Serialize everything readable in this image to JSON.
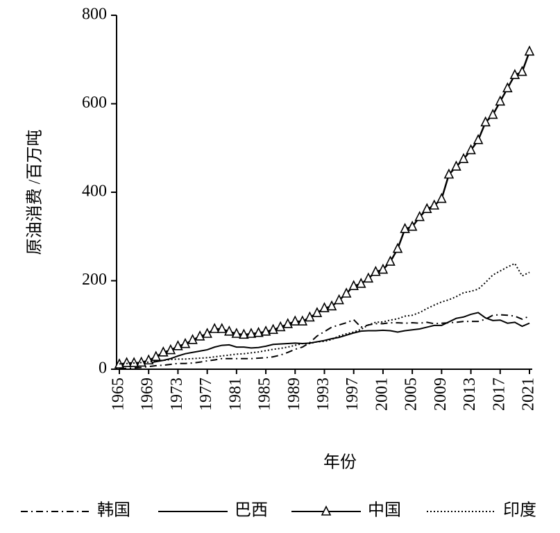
{
  "chart_data": {
    "type": "line",
    "x_label": "年份",
    "y_label": "原油消费 /百万吨",
    "x": [
      1965,
      1966,
      1967,
      1968,
      1969,
      1970,
      1971,
      1972,
      1973,
      1974,
      1975,
      1976,
      1977,
      1978,
      1979,
      1980,
      1981,
      1982,
      1983,
      1984,
      1985,
      1986,
      1987,
      1988,
      1989,
      1990,
      1991,
      1992,
      1993,
      1994,
      1995,
      1996,
      1997,
      1998,
      1999,
      2000,
      2001,
      2002,
      2003,
      2004,
      2005,
      2006,
      2007,
      2008,
      2009,
      2010,
      2011,
      2012,
      2013,
      2014,
      2015,
      2016,
      2017,
      2018,
      2019,
      2020,
      2021
    ],
    "xlim": [
      1965,
      2021
    ],
    "xticks": [
      1965,
      1969,
      1973,
      1977,
      1981,
      1985,
      1989,
      1993,
      1997,
      2001,
      2005,
      2009,
      2013,
      2017,
      2021
    ],
    "ylim": [
      0,
      800
    ],
    "yticks": [
      0,
      200,
      400,
      600,
      800
    ],
    "series": [
      {
        "name": "韩国",
        "color": "#000000",
        "line_style": "dashdot",
        "values": [
          1,
          2,
          3,
          4,
          6,
          8,
          9,
          11,
          13,
          13,
          14,
          16,
          19,
          21,
          24,
          24,
          24,
          24,
          24,
          25,
          26,
          28,
          32,
          38,
          45,
          50,
          60,
          75,
          85,
          95,
          100,
          105,
          112,
          95,
          100,
          103,
          103,
          105,
          105,
          104,
          105,
          104,
          106,
          103,
          104,
          105,
          106,
          108,
          108,
          108,
          113,
          122,
          123,
          122,
          120,
          113,
          120
        ]
      },
      {
        "name": "巴西",
        "color": "#000000",
        "line_style": "solid",
        "values": [
          8,
          9,
          10,
          12,
          14,
          17,
          20,
          24,
          30,
          35,
          38,
          41,
          44,
          50,
          54,
          55,
          50,
          50,
          48,
          49,
          52,
          56,
          57,
          58,
          59,
          58,
          59,
          62,
          65,
          69,
          72,
          77,
          82,
          86,
          87,
          87,
          88,
          87,
          84,
          87,
          89,
          91,
          95,
          99,
          99,
          107,
          115,
          118,
          124,
          128,
          116,
          110,
          111,
          104,
          106,
          97,
          104
        ]
      },
      {
        "name": "中国",
        "color": "#000000",
        "line_style": "solid",
        "marker": "triangle",
        "values": [
          11,
          14,
          14,
          15,
          20,
          28,
          38,
          43,
          52,
          57,
          66,
          74,
          80,
          91,
          91,
          85,
          80,
          78,
          80,
          82,
          85,
          89,
          95,
          102,
          108,
          108,
          117,
          127,
          138,
          142,
          156,
          171,
          188,
          193,
          205,
          220,
          225,
          243,
          272,
          317,
          322,
          344,
          362,
          370,
          385,
          440,
          458,
          475,
          495,
          518,
          558,
          575,
          605,
          635,
          665,
          672,
          718
        ]
      },
      {
        "name": "印度",
        "color": "#000000",
        "line_style": "dotted",
        "values": [
          12,
          13,
          14,
          15,
          16,
          19,
          20,
          22,
          23,
          23,
          24,
          25,
          26,
          28,
          30,
          32,
          34,
          35,
          37,
          39,
          42,
          45,
          47,
          50,
          54,
          58,
          58,
          62,
          63,
          67,
          75,
          80,
          84,
          90,
          100,
          106,
          107,
          111,
          114,
          120,
          122,
          128,
          137,
          145,
          152,
          157,
          164,
          173,
          176,
          181,
          196,
          213,
          222,
          231,
          239,
          211,
          219
        ]
      }
    ]
  }
}
